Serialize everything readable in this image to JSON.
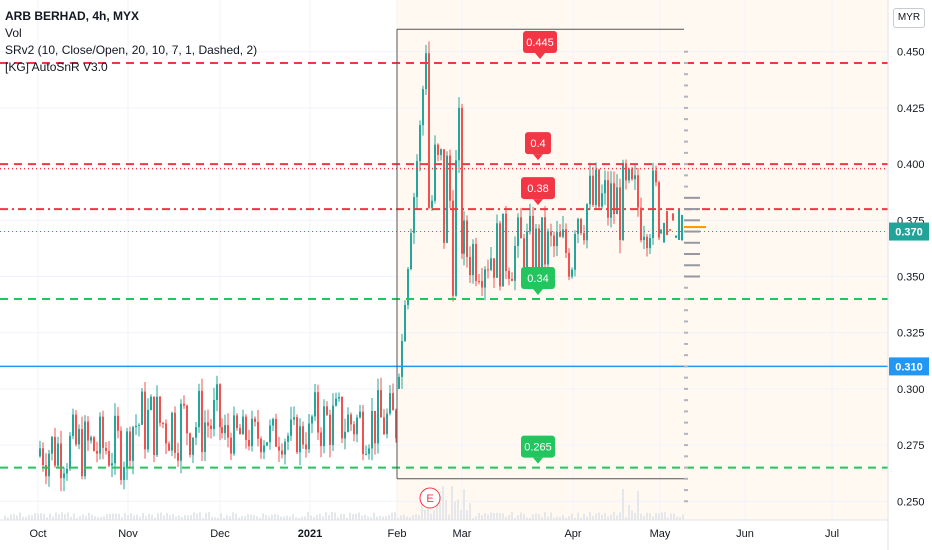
{
  "legend": {
    "line1": "ARB BERHAD, 4h, MYX",
    "line2": "Vol",
    "line3": "SRv2 (10, Close/Open, 20, 10, 7, 1, Dashed, 2)",
    "line4": "[KG] AutoSnR V3.0"
  },
  "currency_button": "MYR",
  "colors": {
    "up": "#26a69a",
    "down": "#ef5350",
    "resistance": "#f23645",
    "support": "#22c55e",
    "last_price": "#22a39a",
    "level_blue": "#2196f3"
  },
  "chart_data": {
    "type": "candlestick",
    "symbol": "ARB BERHAD",
    "interval": "4h",
    "exchange": "MYX",
    "currency": "MYR",
    "y_axis_ticks": [
      "0.450",
      "0.425",
      "0.400",
      "0.375",
      "0.350",
      "0.325",
      "0.300",
      "0.275",
      "0.250"
    ],
    "x_axis_ticks": [
      "Oct",
      "Nov",
      "Dec",
      "2021",
      "Feb",
      "Mar",
      "Apr",
      "May",
      "Jun",
      "Jul"
    ],
    "ylim": [
      0.235,
      0.465
    ],
    "price_labels": [
      {
        "text": "0.370",
        "value": 0.37,
        "kind": "last_price"
      },
      {
        "text": "0.310",
        "value": 0.31,
        "kind": "level"
      }
    ],
    "levels": [
      {
        "value": 0.445,
        "type": "resistance",
        "style": "dashed",
        "label": "0.445"
      },
      {
        "value": 0.4,
        "type": "resistance",
        "style": "dashed",
        "label": "0.4"
      },
      {
        "value": 0.398,
        "type": "resistance",
        "style": "dotted"
      },
      {
        "value": 0.38,
        "type": "resistance",
        "style": "dash-dot",
        "label": "0.38"
      },
      {
        "value": 0.34,
        "type": "support",
        "style": "dashed",
        "label": "0.34"
      },
      {
        "value": 0.265,
        "type": "support",
        "style": "dashed",
        "label": "0.265"
      },
      {
        "value": 0.31,
        "type": "level",
        "style": "solid"
      },
      {
        "value": 0.37,
        "type": "last_price",
        "style": "dotted"
      },
      {
        "value": 0.46,
        "type": "range_high",
        "style": "solid"
      },
      {
        "value": 0.26,
        "type": "range_low",
        "style": "solid"
      }
    ],
    "earnings_marker": "E",
    "series": [
      {
        "segments": [
          {
            "from": "Oct",
            "to": "Nov",
            "low": 0.245,
            "high": 0.3
          },
          {
            "from": "Nov",
            "to": "Dec",
            "low": 0.252,
            "high": 0.315
          },
          {
            "from": "Dec",
            "to": "2021",
            "low": 0.262,
            "high": 0.295
          },
          {
            "from": "2021",
            "to": "Feb",
            "low": 0.258,
            "high": 0.31
          },
          {
            "from": "Feb",
            "to": "Mar",
            "low": 0.3,
            "high": 0.46
          },
          {
            "from": "Mar",
            "to": "Apr",
            "low": 0.33,
            "high": 0.39
          },
          {
            "from": "Apr",
            "to": "May",
            "low": 0.345,
            "high": 0.415
          }
        ]
      }
    ]
  }
}
